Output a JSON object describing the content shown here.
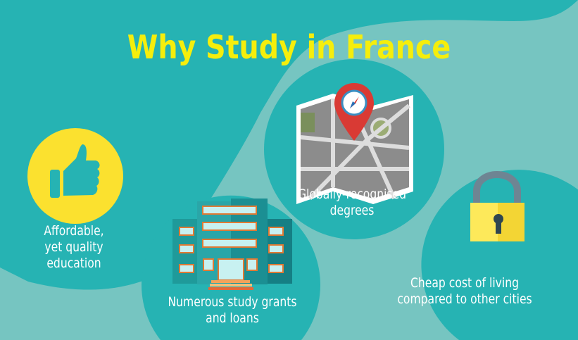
{
  "title": "Why Study in France",
  "colors": {
    "dark_teal": "#26b3b3",
    "light_teal": "#76c5c1",
    "title_yellow": "#f5ee0c",
    "badge_yellow": "#fbe12f"
  },
  "items": [
    {
      "icon": "thumbs-up-icon",
      "line1": "Affordable,",
      "line2": "yet quality",
      "line3": "education"
    },
    {
      "icon": "building-icon",
      "line1": "Numerous study grants",
      "line2": "and loans"
    },
    {
      "icon": "map-pin-icon",
      "line1": "Globally-recognised",
      "line2": "degrees"
    },
    {
      "icon": "padlock-icon",
      "line1": "Cheap cost of living",
      "line2": "compared to other cities"
    }
  ]
}
